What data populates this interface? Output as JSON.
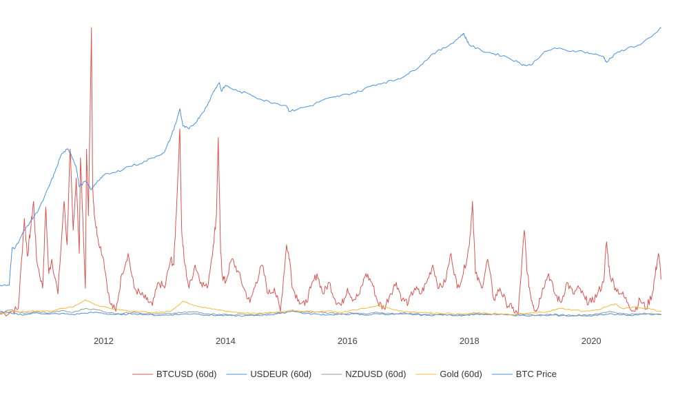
{
  "chart_data": {
    "type": "line",
    "title": "",
    "xlabel": "",
    "ylabel": "",
    "x_range": [
      2010.3,
      2021.15
    ],
    "y_range": [
      0,
      1
    ],
    "grid": false,
    "legend_position": "bottom",
    "x_ticks": [
      {
        "value": 2012,
        "label": "2012"
      },
      {
        "value": 2014,
        "label": "2014"
      },
      {
        "value": 2016,
        "label": "2016"
      },
      {
        "value": 2018,
        "label": "2018"
      },
      {
        "value": 2020,
        "label": "2020"
      }
    ],
    "series": [
      {
        "name": "BTCUSD (60d)",
        "color": "#d9534f",
        "x": [
          2010.3,
          2010.5,
          2010.6,
          2010.7,
          2010.75,
          2010.8,
          2010.85,
          2010.9,
          2011.0,
          2011.05,
          2011.1,
          2011.15,
          2011.25,
          2011.35,
          2011.4,
          2011.45,
          2011.5,
          2011.55,
          2011.6,
          2011.62,
          2011.7,
          2011.72,
          2011.75,
          2011.8,
          2011.82,
          2011.85,
          2011.9,
          2012.0,
          2012.1,
          2012.2,
          2012.3,
          2012.4,
          2012.5,
          2012.6,
          2012.7,
          2012.8,
          2012.9,
          2013.0,
          2013.1,
          2013.15,
          2013.2,
          2013.25,
          2013.28,
          2013.32,
          2013.4,
          2013.5,
          2013.6,
          2013.7,
          2013.8,
          2013.85,
          2013.88,
          2013.92,
          2013.95,
          2014.0,
          2014.1,
          2014.2,
          2014.3,
          2014.4,
          2014.5,
          2014.6,
          2014.7,
          2014.8,
          2014.9,
          2015.0,
          2015.05,
          2015.1,
          2015.2,
          2015.3,
          2015.4,
          2015.5,
          2015.6,
          2015.7,
          2015.8,
          2015.9,
          2016.0,
          2016.1,
          2016.2,
          2016.3,
          2016.4,
          2016.5,
          2016.6,
          2016.7,
          2016.8,
          2016.9,
          2017.0,
          2017.1,
          2017.2,
          2017.3,
          2017.4,
          2017.5,
          2017.6,
          2017.7,
          2017.8,
          2017.9,
          2018.0,
          2018.05,
          2018.1,
          2018.2,
          2018.3,
          2018.4,
          2018.5,
          2018.6,
          2018.7,
          2018.8,
          2018.9,
          2018.95,
          2019.0,
          2019.05,
          2019.1,
          2019.2,
          2019.3,
          2019.4,
          2019.5,
          2019.6,
          2019.7,
          2019.8,
          2019.9,
          2020.0,
          2020.1,
          2020.2,
          2020.25,
          2020.3,
          2020.4,
          2020.5,
          2020.6,
          2020.7,
          2020.8,
          2020.9,
          2021.0,
          2021.05,
          2021.1,
          2021.15
        ],
        "y": [
          0.01,
          0.02,
          0.03,
          0.34,
          0.21,
          0.3,
          0.4,
          0.2,
          0.1,
          0.38,
          0.15,
          0.2,
          0.08,
          0.4,
          0.25,
          0.58,
          0.3,
          0.48,
          0.22,
          0.55,
          0.1,
          0.58,
          0.35,
          1.0,
          0.45,
          0.35,
          0.28,
          0.2,
          0.05,
          0.02,
          0.15,
          0.22,
          0.1,
          0.08,
          0.06,
          0.04,
          0.12,
          0.1,
          0.2,
          0.18,
          0.4,
          0.65,
          0.3,
          0.2,
          0.1,
          0.18,
          0.12,
          0.1,
          0.25,
          0.35,
          0.62,
          0.22,
          0.14,
          0.12,
          0.2,
          0.16,
          0.1,
          0.05,
          0.12,
          0.18,
          0.08,
          0.1,
          0.02,
          0.25,
          0.2,
          0.1,
          0.06,
          0.04,
          0.1,
          0.15,
          0.08,
          0.12,
          0.06,
          0.04,
          0.1,
          0.06,
          0.08,
          0.15,
          0.12,
          0.05,
          0.03,
          0.08,
          0.12,
          0.06,
          0.05,
          0.1,
          0.08,
          0.12,
          0.18,
          0.1,
          0.12,
          0.22,
          0.1,
          0.15,
          0.25,
          0.4,
          0.15,
          0.1,
          0.2,
          0.06,
          0.1,
          0.05,
          0.03,
          0.01,
          0.3,
          0.15,
          0.08,
          0.04,
          0.02,
          0.1,
          0.15,
          0.08,
          0.05,
          0.12,
          0.08,
          0.1,
          0.06,
          0.05,
          0.08,
          0.12,
          0.26,
          0.15,
          0.1,
          0.08,
          0.05,
          0.02,
          0.06,
          0.03,
          0.08,
          0.15,
          0.22,
          0.13
        ]
      },
      {
        "name": "USDEUR (60d)",
        "color": "#4a90e2",
        "x": [
          2010.3,
          2010.5,
          2010.7,
          2010.9,
          2011.1,
          2011.3,
          2011.5,
          2011.7,
          2011.9,
          2012.1,
          2012.3,
          2012.5,
          2012.7,
          2012.9,
          2013.1,
          2013.3,
          2013.5,
          2013.7,
          2013.9,
          2014.1,
          2014.3,
          2014.5,
          2014.7,
          2014.9,
          2015.1,
          2015.3,
          2015.5,
          2015.7,
          2015.9,
          2016.1,
          2016.3,
          2016.5,
          2016.7,
          2016.9,
          2017.1,
          2017.3,
          2017.5,
          2017.7,
          2017.9,
          2018.1,
          2018.3,
          2018.5,
          2018.7,
          2018.9,
          2019.1,
          2019.3,
          2019.5,
          2019.7,
          2019.9,
          2020.1,
          2020.3,
          2020.5,
          2020.7,
          2020.9,
          2021.15
        ],
        "y": [
          0.02,
          0.012,
          0.008,
          0.015,
          0.01,
          0.012,
          0.009,
          0.014,
          0.016,
          0.01,
          0.008,
          0.012,
          0.009,
          0.006,
          0.008,
          0.01,
          0.012,
          0.007,
          0.006,
          0.005,
          0.004,
          0.006,
          0.008,
          0.012,
          0.022,
          0.012,
          0.01,
          0.008,
          0.009,
          0.011,
          0.007,
          0.012,
          0.009,
          0.01,
          0.009,
          0.006,
          0.008,
          0.007,
          0.006,
          0.01,
          0.008,
          0.009,
          0.007,
          0.006,
          0.005,
          0.006,
          0.005,
          0.004,
          0.005,
          0.006,
          0.012,
          0.008,
          0.007,
          0.01,
          0.008
        ]
      },
      {
        "name": "NZDUSD (60d)",
        "color": "#999999",
        "x": [
          2010.3,
          2010.5,
          2010.7,
          2010.9,
          2011.1,
          2011.3,
          2011.5,
          2011.7,
          2011.9,
          2012.1,
          2012.3,
          2012.5,
          2012.7,
          2012.9,
          2013.1,
          2013.3,
          2013.5,
          2013.7,
          2013.9,
          2014.1,
          2014.3,
          2014.5,
          2014.7,
          2014.9,
          2015.1,
          2015.3,
          2015.5,
          2015.7,
          2015.9,
          2016.1,
          2016.3,
          2016.5,
          2016.7,
          2016.9,
          2017.1,
          2017.3,
          2017.5,
          2017.7,
          2017.9,
          2018.1,
          2018.3,
          2018.5,
          2018.7,
          2018.9,
          2019.1,
          2019.3,
          2019.5,
          2019.7,
          2019.9,
          2020.1,
          2020.3,
          2020.5,
          2020.7,
          2020.9,
          2021.15
        ],
        "y": [
          0.015,
          0.025,
          0.012,
          0.018,
          0.014,
          0.022,
          0.016,
          0.03,
          0.025,
          0.015,
          0.012,
          0.018,
          0.012,
          0.01,
          0.012,
          0.016,
          0.018,
          0.012,
          0.01,
          0.008,
          0.01,
          0.008,
          0.012,
          0.015,
          0.02,
          0.016,
          0.018,
          0.014,
          0.012,
          0.014,
          0.01,
          0.016,
          0.012,
          0.014,
          0.012,
          0.009,
          0.01,
          0.009,
          0.008,
          0.012,
          0.01,
          0.011,
          0.009,
          0.008,
          0.007,
          0.009,
          0.008,
          0.007,
          0.008,
          0.01,
          0.02,
          0.012,
          0.01,
          0.012,
          0.01
        ]
      },
      {
        "name": "Gold (60d)",
        "color": "#f5b942",
        "x": [
          2010.3,
          2010.5,
          2010.7,
          2010.9,
          2011.1,
          2011.3,
          2011.5,
          2011.7,
          2011.8,
          2011.9,
          2012.1,
          2012.3,
          2012.5,
          2012.7,
          2012.9,
          2013.1,
          2013.3,
          2013.5,
          2013.7,
          2013.9,
          2014.1,
          2014.3,
          2014.5,
          2014.7,
          2014.9,
          2015.1,
          2015.3,
          2015.5,
          2015.7,
          2015.9,
          2016.1,
          2016.3,
          2016.5,
          2016.7,
          2016.9,
          2017.1,
          2017.3,
          2017.5,
          2017.7,
          2017.9,
          2018.1,
          2018.3,
          2018.5,
          2018.7,
          2018.9,
          2019.1,
          2019.3,
          2019.5,
          2019.7,
          2019.9,
          2020.1,
          2020.3,
          2020.4,
          2020.5,
          2020.7,
          2020.9,
          2021.15
        ],
        "y": [
          0.012,
          0.02,
          0.018,
          0.022,
          0.02,
          0.03,
          0.035,
          0.06,
          0.05,
          0.04,
          0.03,
          0.025,
          0.02,
          0.018,
          0.015,
          0.02,
          0.055,
          0.04,
          0.03,
          0.025,
          0.018,
          0.015,
          0.012,
          0.015,
          0.018,
          0.025,
          0.02,
          0.018,
          0.022,
          0.015,
          0.025,
          0.03,
          0.04,
          0.03,
          0.02,
          0.018,
          0.015,
          0.014,
          0.012,
          0.01,
          0.015,
          0.012,
          0.01,
          0.008,
          0.012,
          0.015,
          0.02,
          0.03,
          0.025,
          0.02,
          0.025,
          0.04,
          0.045,
          0.03,
          0.035,
          0.03,
          0.02
        ]
      },
      {
        "name": "BTC Price",
        "color": "#4a90e2",
        "x": [
          2010.3,
          2010.45,
          2010.5,
          2010.55,
          2010.7,
          2010.8,
          2010.9,
          2011.0,
          2011.1,
          2011.2,
          2011.3,
          2011.4,
          2011.45,
          2011.55,
          2011.6,
          2011.7,
          2011.8,
          2011.9,
          2012.0,
          2012.2,
          2012.4,
          2012.6,
          2012.8,
          2013.0,
          2013.1,
          2013.2,
          2013.25,
          2013.3,
          2013.4,
          2013.5,
          2013.6,
          2013.7,
          2013.8,
          2013.9,
          2013.93,
          2014.0,
          2014.2,
          2014.4,
          2014.6,
          2014.8,
          2015.0,
          2015.05,
          2015.2,
          2015.4,
          2015.6,
          2015.8,
          2016.0,
          2016.2,
          2016.4,
          2016.6,
          2016.8,
          2017.0,
          2017.2,
          2017.4,
          2017.6,
          2017.8,
          2017.9,
          2017.95,
          2018.0,
          2018.2,
          2018.4,
          2018.6,
          2018.8,
          2018.9,
          2019.0,
          2019.2,
          2019.4,
          2019.6,
          2019.8,
          2020.0,
          2020.2,
          2020.25,
          2020.4,
          2020.6,
          2020.8,
          2021.0,
          2021.15
        ],
        "y": [
          0.11,
          0.11,
          0.24,
          0.24,
          0.3,
          0.33,
          0.36,
          0.4,
          0.45,
          0.5,
          0.56,
          0.58,
          0.57,
          0.52,
          0.45,
          0.47,
          0.44,
          0.47,
          0.49,
          0.5,
          0.52,
          0.53,
          0.55,
          0.57,
          0.62,
          0.68,
          0.72,
          0.66,
          0.65,
          0.67,
          0.7,
          0.73,
          0.78,
          0.81,
          0.78,
          0.8,
          0.78,
          0.77,
          0.75,
          0.74,
          0.73,
          0.71,
          0.72,
          0.73,
          0.75,
          0.76,
          0.77,
          0.78,
          0.8,
          0.81,
          0.82,
          0.84,
          0.87,
          0.91,
          0.93,
          0.96,
          0.98,
          0.96,
          0.94,
          0.92,
          0.91,
          0.9,
          0.88,
          0.87,
          0.87,
          0.91,
          0.93,
          0.92,
          0.92,
          0.91,
          0.9,
          0.88,
          0.91,
          0.93,
          0.94,
          0.97,
          1.0
        ]
      }
    ]
  }
}
